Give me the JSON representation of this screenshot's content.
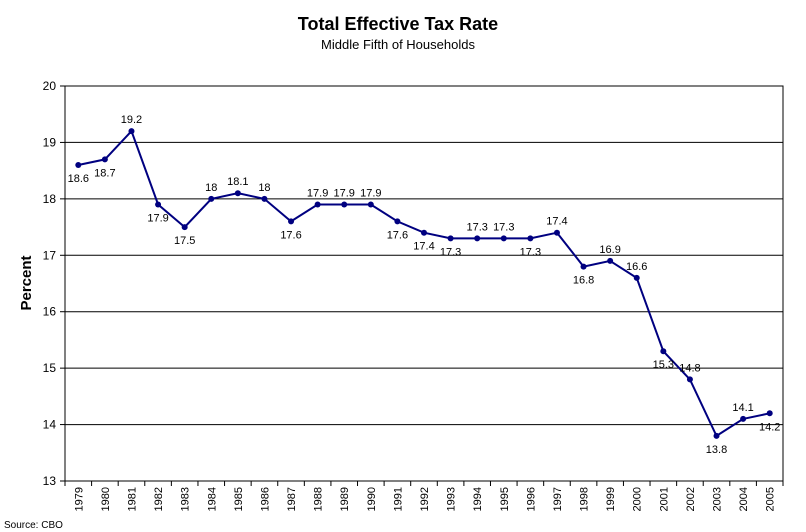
{
  "chart_data": {
    "type": "line",
    "title": "Total Effective Tax Rate",
    "subtitle": "Middle Fifth of Households",
    "xlabel": "",
    "ylabel": "Percent",
    "ylim": [
      13,
      20
    ],
    "yticks": [
      13,
      14,
      15,
      16,
      17,
      18,
      19,
      20
    ],
    "grid": true,
    "legend": "none",
    "source": "Source: CBO",
    "line_color": "#000080",
    "categories": [
      "1979",
      "1980",
      "1981",
      "1982",
      "1983",
      "1984",
      "1985",
      "1986",
      "1987",
      "1988",
      "1989",
      "1990",
      "1991",
      "1992",
      "1993",
      "1994",
      "1995",
      "1996",
      "1997",
      "1998",
      "1999",
      "2000",
      "2001",
      "2002",
      "2003",
      "2004",
      "2005"
    ],
    "values": [
      18.6,
      18.7,
      19.2,
      17.9,
      17.5,
      18.0,
      18.1,
      18.0,
      17.6,
      17.9,
      17.9,
      17.9,
      17.6,
      17.4,
      17.3,
      17.3,
      17.3,
      17.3,
      17.4,
      16.8,
      16.9,
      16.6,
      15.3,
      14.8,
      13.8,
      14.1,
      14.2
    ],
    "data_labels": [
      "18.6",
      "18.7",
      "19.2",
      "17.9",
      "17.5",
      "18",
      "18.1",
      "18",
      "17.6",
      "17.9",
      "17.9",
      "17.9",
      "17.6",
      "17.4",
      "17.3",
      "17.3",
      "17.3",
      "17.3",
      "17.4",
      "16.8",
      "16.9",
      "16.6",
      "15.3",
      "14.8",
      "13.8",
      "14.1",
      "14.2"
    ]
  }
}
